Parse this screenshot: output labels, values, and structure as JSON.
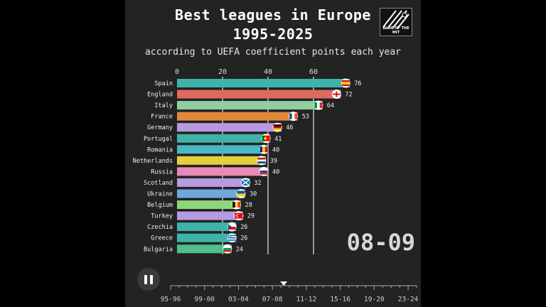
{
  "title_line1": "Best leagues in Europe",
  "title_line2": "1995-2025",
  "subtitle": "according to UEFA coefficient points each year",
  "logo_text": "BLOG OF THE MIT",
  "season_label": "08-09",
  "timeline": {
    "ticks": [
      "95-96",
      "99-00",
      "03-04",
      "07-08",
      "11-12",
      "15-16",
      "19-20",
      "23-24"
    ],
    "current_fraction": 0.46
  },
  "chart_data": {
    "type": "bar",
    "orientation": "horizontal",
    "title": "Best leagues in Europe 1995-2025",
    "subtitle": "according to UEFA coefficient points each year",
    "xlim": [
      0,
      72
    ],
    "xticks": [
      0,
      20,
      40,
      60
    ],
    "grid": true,
    "categories": [
      "Spain",
      "England",
      "Italy",
      "France",
      "Germany",
      "Portugal",
      "Romania",
      "Netherlands",
      "Russia",
      "Scotland",
      "Ukraine",
      "Belgium",
      "Turkey",
      "Czechia",
      "Greece",
      "Bulgaria"
    ],
    "values": [
      76,
      72,
      64,
      53,
      46,
      41,
      40,
      39,
      40,
      32,
      30,
      28,
      29,
      26,
      26,
      24
    ],
    "colors": [
      "#3fb3aa",
      "#e06a60",
      "#8fd0a2",
      "#e0893a",
      "#b79be0",
      "#3fb3aa",
      "#4ab6c6",
      "#e6cf3c",
      "#e58bb5",
      "#b79be0",
      "#6ea8dc",
      "#8fd67a",
      "#b79be0",
      "#3fb3aa",
      "#3fb3aa",
      "#4fbf8c"
    ],
    "flags": [
      "spain-flag-icon",
      "england-flag-icon",
      "italy-flag-icon",
      "france-flag-icon",
      "germany-flag-icon",
      "portugal-flag-icon",
      "romania-flag-icon",
      "netherlands-flag-icon",
      "russia-flag-icon",
      "scotland-flag-icon",
      "ukraine-flag-icon",
      "belgium-flag-icon",
      "turkey-flag-icon",
      "czechia-flag-icon",
      "greece-flag-icon",
      "bulgaria-flag-icon"
    ],
    "season": "08-09"
  }
}
